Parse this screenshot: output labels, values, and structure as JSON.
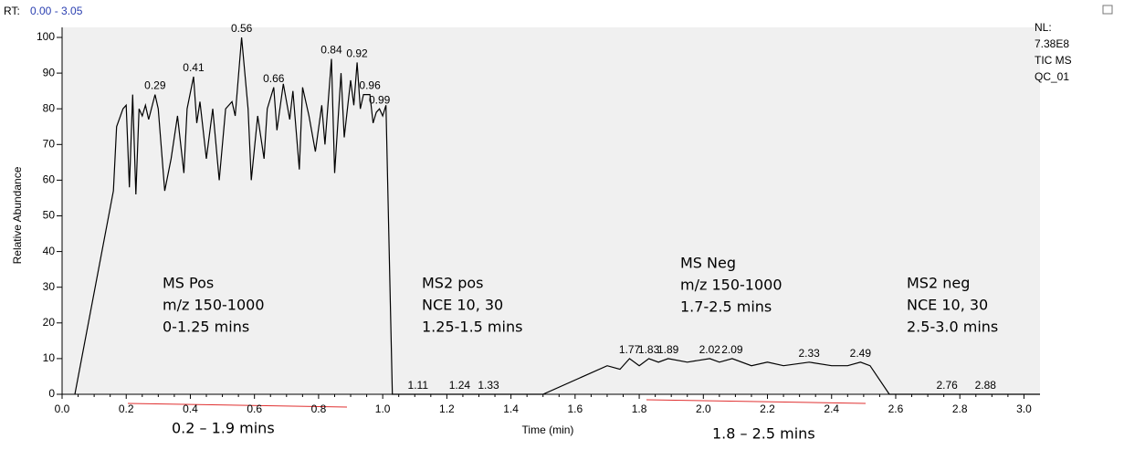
{
  "chart_data": {
    "type": "line",
    "header": {
      "rt_label": "RT:",
      "rt_range": "0.00 - 3.05",
      "nl": [
        "NL:",
        "7.38E8",
        "TIC MS",
        "QC_01"
      ]
    },
    "xlabel": "Time (min)",
    "ylabel": "Relative Abundance",
    "color": "#000000",
    "x": [
      0.04,
      0.16,
      0.17,
      0.19,
      0.2,
      0.21,
      0.22,
      0.23,
      0.24,
      0.25,
      0.26,
      0.27,
      0.29,
      0.3,
      0.32,
      0.34,
      0.36,
      0.38,
      0.39,
      0.41,
      0.42,
      0.43,
      0.45,
      0.47,
      0.49,
      0.51,
      0.53,
      0.54,
      0.56,
      0.58,
      0.59,
      0.61,
      0.63,
      0.64,
      0.66,
      0.67,
      0.69,
      0.71,
      0.72,
      0.74,
      0.75,
      0.77,
      0.79,
      0.81,
      0.82,
      0.84,
      0.85,
      0.87,
      0.88,
      0.9,
      0.91,
      0.92,
      0.93,
      0.94,
      0.96,
      0.97,
      0.98,
      0.99,
      1.0,
      1.01,
      1.03,
      1.11,
      1.24,
      1.33,
      1.5,
      1.7,
      1.74,
      1.77,
      1.8,
      1.83,
      1.86,
      1.89,
      1.95,
      2.02,
      2.05,
      2.09,
      2.15,
      2.2,
      2.25,
      2.33,
      2.4,
      2.45,
      2.49,
      2.52,
      2.58,
      2.76,
      2.88,
      3.05
    ],
    "values": [
      0,
      57,
      75,
      80,
      81,
      58,
      84,
      56,
      80,
      78,
      81,
      77,
      84,
      80,
      57,
      66,
      78,
      62,
      80,
      89,
      76,
      82,
      66,
      80,
      60,
      80,
      82,
      78,
      100,
      80,
      60,
      78,
      66,
      80,
      86,
      74,
      87,
      77,
      85,
      63,
      86,
      78,
      68,
      81,
      70,
      94,
      62,
      90,
      72,
      88,
      81,
      93,
      80,
      84,
      84,
      76,
      79,
      80,
      78,
      81,
      0,
      0,
      0,
      0,
      0,
      8,
      7,
      10,
      8,
      10,
      9,
      10,
      9,
      10,
      9,
      10,
      8,
      9,
      8,
      9,
      8,
      8,
      9,
      8,
      0,
      0,
      0,
      0
    ],
    "peak_labels": [
      0.29,
      0.41,
      0.56,
      0.66,
      0.84,
      0.92,
      0.96,
      0.99,
      1.11,
      1.24,
      1.33,
      1.77,
      1.83,
      1.89,
      2.02,
      2.09,
      2.33,
      2.49,
      2.76,
      2.88
    ],
    "xlim": [
      0,
      3.05
    ],
    "xticks": [
      {
        "value": 0,
        "label": "0.0"
      },
      0.2,
      0.4,
      0.6,
      0.8,
      {
        "value": 1,
        "label": "1.0"
      },
      1.2,
      1.4,
      1.6,
      1.8,
      {
        "value": 2,
        "label": "2.0"
      },
      2.2,
      2.4,
      2.6,
      2.8,
      {
        "value": 3,
        "label": "3.0"
      }
    ],
    "ylim": [
      0,
      100
    ],
    "yticks": [
      0,
      10,
      20,
      30,
      40,
      50,
      60,
      70,
      80,
      90,
      100
    ],
    "annotations": [
      [
        "MS Pos",
        "m/z 150-1000",
        "0-1.25 mins"
      ],
      [
        "MS2 pos",
        "NCE 10, 30",
        "1.25-1.5 mins"
      ],
      [
        "MS Neg",
        "m/z 150-1000",
        "1.7-2.5 mins"
      ],
      [
        "MS2 neg",
        "NCE 10, 30",
        "2.5-3.0 mins"
      ]
    ],
    "ranges": [
      "0.2 – 1.9 mins",
      "1.8 – 2.5 mins"
    ]
  }
}
